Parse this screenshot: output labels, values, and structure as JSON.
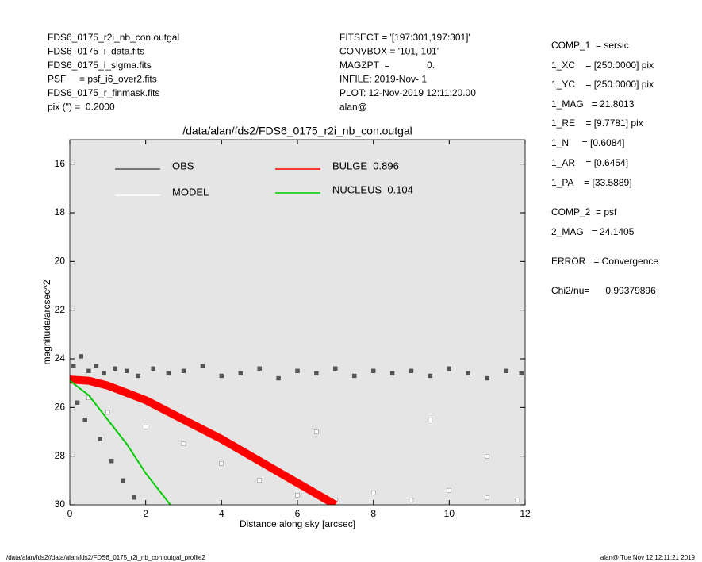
{
  "header_left": [
    "FDS6_0175_r2i_nb_con.outgal",
    "FDS6_0175_i_data.fits",
    "FDS6_0175_i_sigma.fits",
    "PSF     = psf_i6_over2.fits",
    "FDS6_0175_r_finmask.fits",
    "pix (\") =  0.2000"
  ],
  "header_middle": [
    "FITSECT = '[197:301,197:301]'",
    "CONVBOX = '101, 101'",
    "MAGZPT  =              0.",
    "INFILE: 2019-Nov- 1",
    "PLOT: 12-Nov-2019 12:11:20.00",
    "alan@"
  ],
  "params": [
    "COMP_1  = sersic",
    "1_XC    = [250.0000] pix",
    "1_YC    = [250.0000] pix",
    "1_MAG   = 21.8013",
    "1_RE    = [9.7781] pix",
    "1_N     = [0.6084]",
    "1_AR    = [0.6454]",
    "1_PA    = [33.5889]",
    "COMP_2  = psf",
    "2_MAG   = 24.1405",
    "ERROR   = Convergence",
    "Chi2/nu=      0.99379896"
  ],
  "footer_left": "/data/alan/fds2//data/alan/fds2/FDS6_0175_r2i_nb_con.outgal_profile2",
  "footer_right": "alan@  Tue Nov 12 12:11:21 2019",
  "chart_data": {
    "type": "scatter",
    "title": "/data/alan/fds2/FDS6_0175_r2i_nb_con.outgal",
    "x_label": "Distance along sky [arcsec]",
    "y_label": "magnitude/arcsec^2",
    "xlim": [
      0,
      12
    ],
    "xticks": [
      0,
      2,
      4,
      6,
      8,
      10,
      12
    ],
    "ylim": [
      30,
      15
    ],
    "yticks": [
      16,
      18,
      20,
      22,
      24,
      26,
      28,
      30
    ],
    "background": "#e5e5e5",
    "series": [
      {
        "name": "OBS",
        "color": "#555555",
        "kind": "points",
        "x": [
          0.1,
          0.3,
          0.5,
          0.7,
          0.9,
          1.2,
          1.5,
          1.8,
          2.2,
          2.6,
          3,
          3.5,
          4,
          4.5,
          5,
          5.5,
          6,
          6.5,
          7,
          7.5,
          8,
          8.5,
          9,
          9.5,
          10,
          10.5,
          11,
          11.5,
          11.9,
          0.2,
          0.4,
          0.8,
          1.1,
          1.4,
          1.7
        ],
        "values": [
          24.3,
          23.9,
          24.5,
          24.3,
          24.6,
          24.4,
          24.5,
          24.7,
          24.4,
          24.6,
          24.5,
          24.3,
          24.7,
          24.6,
          24.4,
          24.8,
          24.5,
          24.6,
          24.4,
          24.7,
          24.5,
          24.6,
          24.5,
          24.7,
          24.4,
          24.6,
          24.8,
          24.5,
          24.6,
          25.8,
          26.5,
          27.3,
          28.2,
          29.0,
          29.7
        ]
      },
      {
        "name": "MODEL",
        "color": "#ffffff",
        "kind": "points",
        "x": [
          0.5,
          1,
          2,
          3,
          4,
          5,
          6,
          7,
          8,
          9,
          10,
          11,
          11.8,
          6.5,
          9.5,
          11
        ],
        "values": [
          25.6,
          26.2,
          26.8,
          27.5,
          28.3,
          29,
          29.6,
          29.8,
          29.5,
          29.8,
          29.4,
          29.7,
          29.8,
          27,
          26.5,
          28
        ]
      },
      {
        "name": "BULGE  0.896",
        "color": "#ff0000",
        "kind": "band",
        "x": [
          0,
          0.5,
          1,
          2,
          3,
          4,
          5,
          6,
          7
        ],
        "values": [
          24.85,
          24.9,
          25.1,
          25.7,
          26.5,
          27.3,
          28.2,
          29.1,
          30
        ]
      },
      {
        "name": "NUCLEUS  0.104",
        "color": "#00cc00",
        "kind": "line",
        "x": [
          0,
          0.5,
          1,
          1.5,
          2,
          2.5,
          2.65
        ],
        "values": [
          24.9,
          25.5,
          26.5,
          27.5,
          28.7,
          29.7,
          30
        ]
      }
    ]
  }
}
